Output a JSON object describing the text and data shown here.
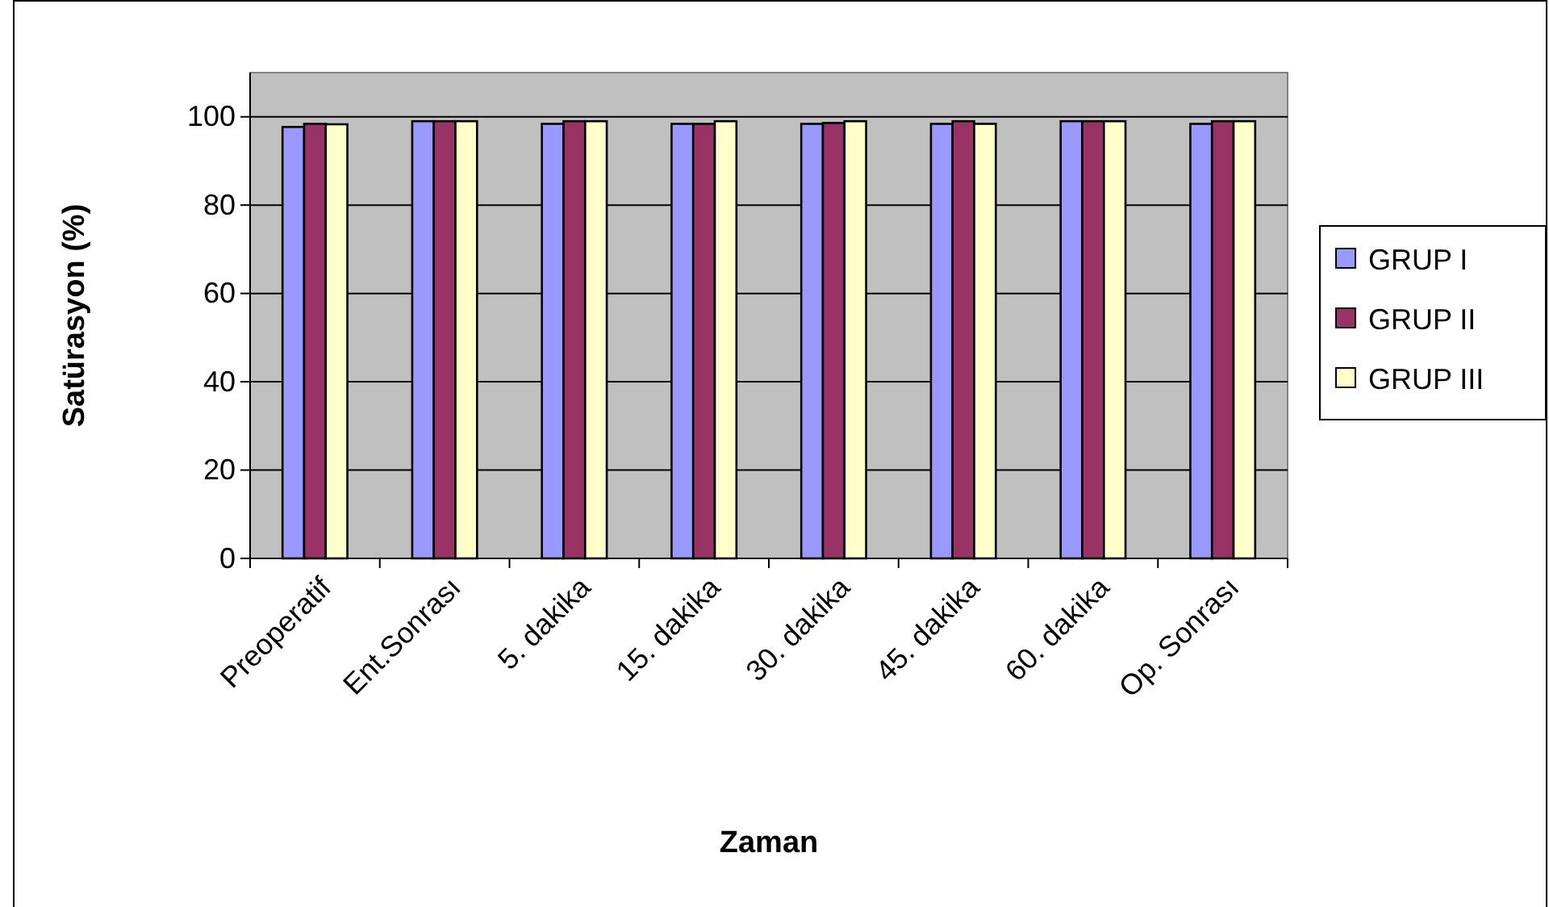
{
  "chart_data": {
    "type": "bar",
    "xlabel": "Zaman",
    "ylabel": "Satürasyon (%)",
    "categories": [
      "Preoperatif",
      "Ent.Sonrası",
      "5. dakika",
      "15. dakika",
      "30. dakika",
      "45. dakika",
      "60. dakika",
      "Op. Sonrası"
    ],
    "series": [
      {
        "name": "GRUP I",
        "color": "#9999ff",
        "values": [
          97.7,
          99,
          98.4,
          98.4,
          98.4,
          98.4,
          99,
          98.4
        ]
      },
      {
        "name": "GRUP II",
        "color": "#993366",
        "values": [
          98.4,
          99,
          99,
          98.4,
          98.6,
          99,
          99,
          99
        ]
      },
      {
        "name": "GRUP III",
        "color": "#ffffcc",
        "values": [
          98.3,
          99,
          99,
          99,
          99,
          98.4,
          99,
          99
        ]
      }
    ],
    "ylim": [
      0,
      110
    ],
    "yticks": [
      0,
      20,
      40,
      60,
      80,
      100
    ],
    "grid": "y",
    "legend": "right"
  }
}
